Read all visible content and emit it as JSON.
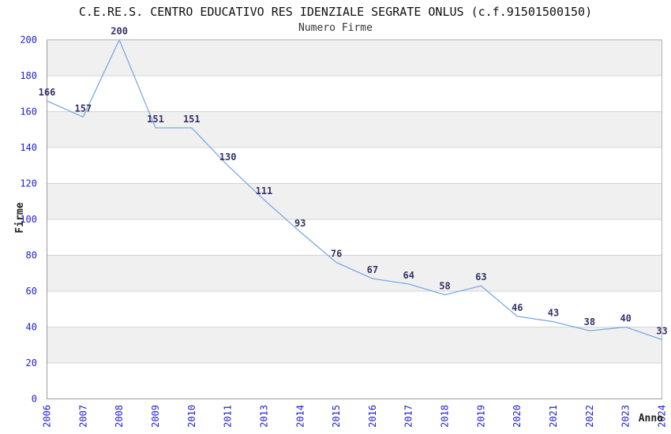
{
  "chart_data": {
    "type": "line",
    "title": "C.E.RE.S. CENTRO EDUCATIVO RES IDENZIALE SEGRATE ONLUS (c.f.91501500150)",
    "subtitle": "Numero Firme",
    "xlabel": "Anno",
    "ylabel": "Firme",
    "categories": [
      "2006",
      "2007",
      "2008",
      "2009",
      "2010",
      "2011",
      "2013",
      "2014",
      "2015",
      "2016",
      "2017",
      "2018",
      "2019",
      "2020",
      "2021",
      "2022",
      "2023",
      "2024"
    ],
    "values": [
      166,
      157,
      200,
      151,
      151,
      130,
      111,
      93,
      76,
      67,
      64,
      58,
      63,
      46,
      43,
      38,
      40,
      33
    ],
    "ylim": [
      0,
      200
    ],
    "ytick_step": 20,
    "grid": true,
    "legend_position": "none",
    "band_fill": "alternating-horizontal",
    "colors": {
      "line": "#7aabe3",
      "tick_label": "#2222cc",
      "data_label": "#333366",
      "band_gray": "#f0f0f0",
      "gridline": "#d4d4d4",
      "plot_border": "#b4b4b4",
      "axis_line": "#9a9a9a",
      "title": "#111111",
      "subtitle": "#333333",
      "axis_title": "#222222",
      "background": "#ffffff"
    }
  }
}
